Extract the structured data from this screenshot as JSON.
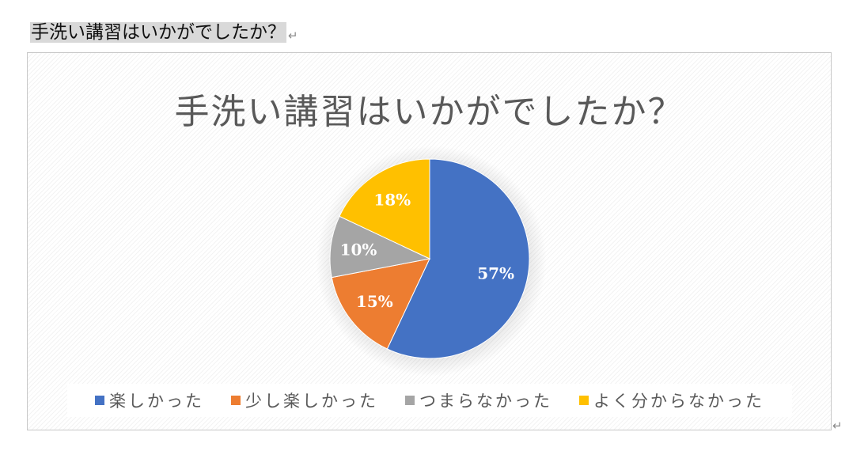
{
  "document": {
    "heading": "手洗い講習はいかがでしたか？",
    "paragraph_mark": "↵"
  },
  "chart_data": {
    "type": "pie",
    "title": "手洗い講習はいかがでしたか？",
    "categories": [
      "楽しかった",
      "少し楽しかった",
      "つまらなかった",
      "よく分からなかった"
    ],
    "values": [
      57,
      15,
      10,
      18
    ],
    "data_labels": [
      "57%",
      "15%",
      "10%",
      "18%"
    ],
    "colors": [
      "#4472c4",
      "#ed7d31",
      "#a5a5a5",
      "#ffc000"
    ],
    "label_color": "#ffffff",
    "start_angle_deg": 0,
    "direction": "clockwise",
    "legend_position": "bottom"
  }
}
